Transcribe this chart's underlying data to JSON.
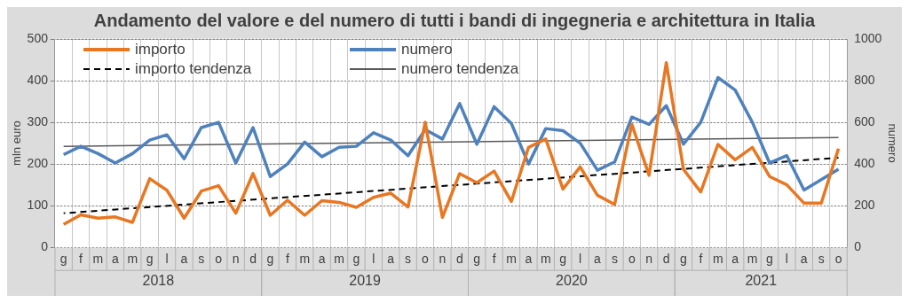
{
  "chart_data": {
    "type": "line",
    "title": "Andamento del valore e del numero di tutti i bandi di ingegneria e architettura in Italia",
    "categories": [
      "g",
      "f",
      "m",
      "a",
      "m",
      "g",
      "l",
      "a",
      "s",
      "o",
      "n",
      "d",
      "g",
      "f",
      "m",
      "a",
      "m",
      "g",
      "l",
      "a",
      "s",
      "o",
      "n",
      "d",
      "g",
      "f",
      "m",
      "a",
      "m",
      "g",
      "l",
      "a",
      "s",
      "o",
      "n",
      "d",
      "g",
      "f",
      "m",
      "a",
      "m",
      "g",
      "l",
      "a",
      "s",
      "o"
    ],
    "annotations": [
      "2018",
      "2019",
      "2020",
      "2021"
    ],
    "ylabel": "mln euro",
    "y2label": "numero",
    "ylim": [
      0,
      500
    ],
    "yticks": [
      0,
      100,
      200,
      300,
      400,
      500
    ],
    "y2lim": [
      0,
      1000
    ],
    "y2ticks": [
      0,
      200,
      400,
      600,
      800,
      1000
    ],
    "grid": true,
    "legend": "top left",
    "marker": "none",
    "series": [
      {
        "name": "importo",
        "color": "#e87722",
        "values": [
          55,
          78,
          70,
          73,
          60,
          165,
          137,
          70,
          135,
          148,
          82,
          177,
          77,
          113,
          77,
          112,
          108,
          96,
          120,
          130,
          97,
          300,
          72,
          177,
          155,
          183,
          110,
          240,
          260,
          140,
          193,
          125,
          103,
          295,
          173,
          443,
          187,
          133,
          247,
          210,
          240,
          170,
          150,
          106,
          106,
          237
        ]
      },
      {
        "name": "numero",
        "color": "#4f81bd",
        "axis": "y2",
        "values": [
          445,
          485,
          450,
          405,
          450,
          515,
          540,
          425,
          575,
          600,
          405,
          575,
          340,
          400,
          505,
          435,
          480,
          485,
          550,
          515,
          440,
          565,
          520,
          690,
          495,
          675,
          595,
          400,
          570,
          560,
          500,
          370,
          410,
          625,
          590,
          680,
          495,
          600,
          815,
          755,
          600,
          405,
          440,
          275,
          325,
          375
        ]
      },
      {
        "name": "importo tendenza",
        "color": "#000000",
        "line_style": "dashed",
        "values": [
          82,
          null,
          null,
          null,
          null,
          null,
          null,
          null,
          null,
          null,
          null,
          null,
          null,
          null,
          null,
          null,
          null,
          null,
          null,
          null,
          null,
          null,
          null,
          null,
          null,
          null,
          null,
          null,
          null,
          null,
          null,
          null,
          null,
          null,
          null,
          null,
          null,
          null,
          null,
          null,
          null,
          null,
          null,
          null,
          null,
          215
        ]
      },
      {
        "name": "numero tendenza",
        "color": "#595959",
        "axis": "y2",
        "line_style": "solid",
        "values": [
          485,
          null,
          null,
          null,
          null,
          null,
          null,
          null,
          null,
          null,
          null,
          null,
          null,
          null,
          null,
          null,
          null,
          null,
          null,
          null,
          null,
          null,
          null,
          null,
          null,
          null,
          null,
          null,
          null,
          null,
          null,
          null,
          null,
          null,
          null,
          null,
          null,
          null,
          null,
          null,
          null,
          null,
          null,
          null,
          null,
          527
        ]
      }
    ]
  }
}
